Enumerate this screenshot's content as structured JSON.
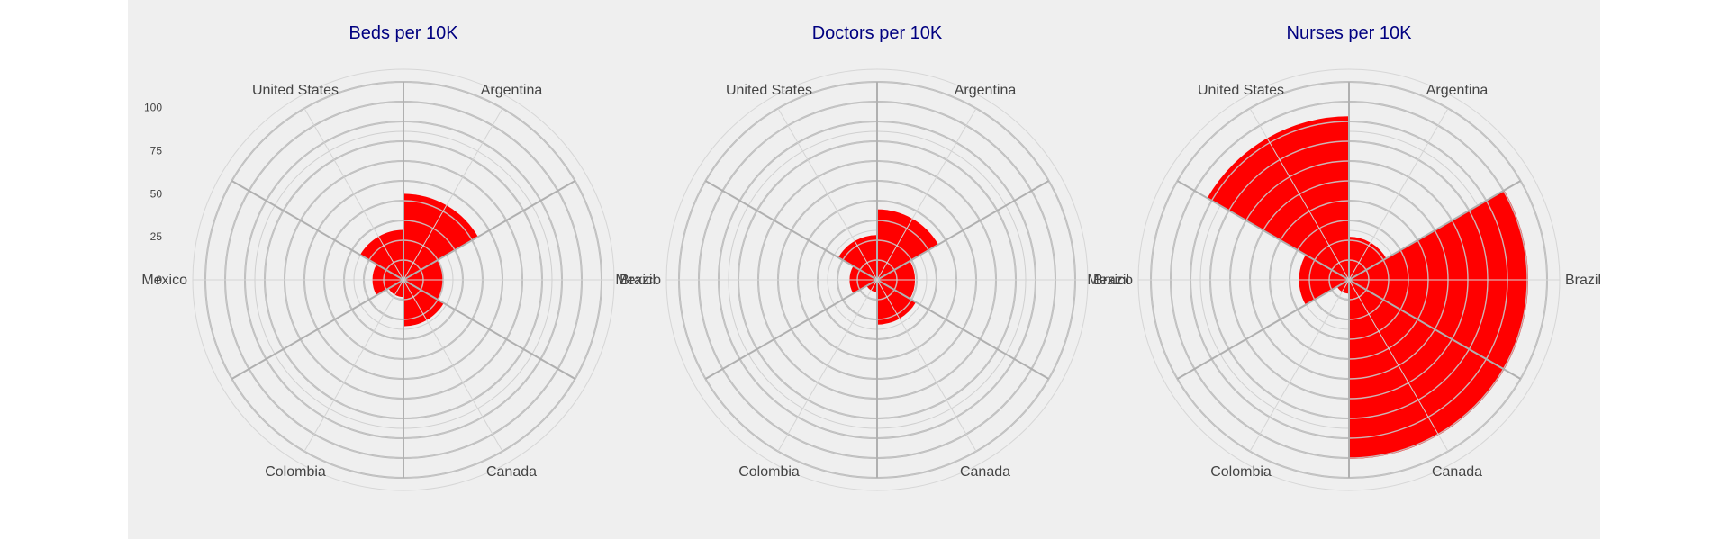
{
  "chart_data": [
    {
      "type": "polar-bar",
      "title": "Beds per 10K",
      "categories": [
        "Argentina",
        "Brazil",
        "Canada",
        "Colombia",
        "Mexico",
        "United States"
      ],
      "values": [
        50,
        23,
        27,
        10,
        18,
        29
      ],
      "rlim": [
        0,
        115
      ],
      "radial_ticks": [
        "0",
        "25",
        "50",
        "75",
        "100"
      ],
      "radial_tick_values": [
        0,
        25,
        50,
        75,
        100
      ],
      "grid": true
    },
    {
      "type": "polar-bar",
      "title": "Doctors per 10K",
      "categories": [
        "Argentina",
        "Brazil",
        "Canada",
        "Colombia",
        "Mexico",
        "United States"
      ],
      "values": [
        41,
        22,
        26,
        7,
        16,
        26
      ],
      "rlim": [
        0,
        115
      ],
      "grid": true
    },
    {
      "type": "polar-bar",
      "title": "Nurses per 10K",
      "categories": [
        "Argentina",
        "Brazil",
        "Canada",
        "Colombia",
        "Mexico",
        "United States"
      ],
      "values": [
        25,
        104,
        104,
        8,
        29,
        95
      ],
      "rlim": [
        0,
        115
      ],
      "grid": true
    }
  ],
  "colors": {
    "bar_fill": "#ff0000",
    "title": "#000080",
    "grid": "#b0b0b0",
    "spoke": "#c8c8c8",
    "background": "#efefef"
  }
}
